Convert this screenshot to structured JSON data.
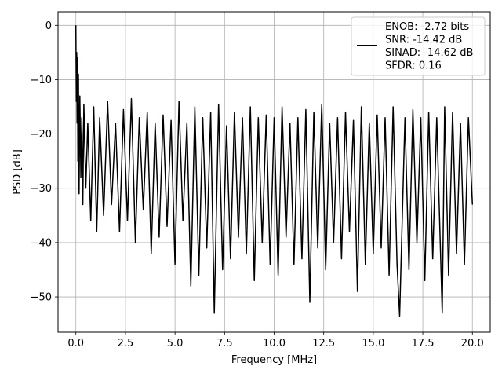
{
  "chart_data": {
    "type": "line",
    "xlabel": "Frequency [MHz]",
    "ylabel": "PSD [dB]",
    "xlim": [
      -0.9,
      20.9
    ],
    "ylim": [
      -56.5,
      2.5
    ],
    "xticks": [
      0.0,
      2.5,
      5.0,
      7.5,
      10.0,
      12.5,
      15.0,
      17.5,
      20.0
    ],
    "xtick_labels": [
      "0.0",
      "2.5",
      "5.0",
      "7.5",
      "10.0",
      "12.5",
      "15.0",
      "17.5",
      "20.0"
    ],
    "yticks": [
      0,
      -10,
      -20,
      -30,
      -40,
      -50
    ],
    "ytick_labels": [
      "0",
      "−10",
      "−20",
      "−30",
      "−40",
      "−50"
    ],
    "grid": true,
    "legend_placement": "upper-right",
    "legend_lines": [
      "ENOB: -2.72 bits",
      "SNR: -14.42 dB",
      "SINAD: -14.62 dB",
      "SFDR: 0.16"
    ],
    "line_color": "#000000",
    "series": [
      {
        "x": [
          0.0,
          0.02,
          0.04,
          0.06,
          0.08,
          0.1,
          0.13,
          0.16,
          0.2,
          0.25,
          0.3,
          0.35,
          0.4,
          0.5,
          0.6,
          0.75,
          0.9,
          1.05,
          1.2,
          1.4,
          1.6,
          1.8,
          2.0,
          2.2,
          2.4,
          2.6,
          2.8,
          3.0,
          3.2,
          3.4,
          3.6,
          3.8,
          4.0,
          4.2,
          4.4,
          4.6,
          4.8,
          5.0,
          5.2,
          5.4,
          5.6,
          5.8,
          6.0,
          6.2,
          6.4,
          6.6,
          6.8,
          6.98,
          7.2,
          7.4,
          7.6,
          7.8,
          8.0,
          8.2,
          8.4,
          8.6,
          8.8,
          9.0,
          9.2,
          9.4,
          9.6,
          9.8,
          10.0,
          10.2,
          10.4,
          10.6,
          10.8,
          11.0,
          11.2,
          11.4,
          11.6,
          11.8,
          12.0,
          12.2,
          12.4,
          12.6,
          12.8,
          13.0,
          13.2,
          13.4,
          13.6,
          13.8,
          14.0,
          14.2,
          14.4,
          14.6,
          14.8,
          15.0,
          15.2,
          15.4,
          15.6,
          15.8,
          16.0,
          16.2,
          16.33,
          16.6,
          16.8,
          17.0,
          17.2,
          17.4,
          17.6,
          17.8,
          18.0,
          18.2,
          18.48,
          18.6,
          18.8,
          19.0,
          19.2,
          19.4,
          19.6,
          19.8,
          20.0
        ],
        "y": [
          0.0,
          -14.0,
          -5.0,
          -18.0,
          -6.0,
          -25.0,
          -9.0,
          -31.0,
          -13.0,
          -28.0,
          -17.0,
          -33.0,
          -14.5,
          -30.0,
          -18.0,
          -36.0,
          -15.0,
          -38.0,
          -17.0,
          -35.0,
          -14.0,
          -33.0,
          -18.0,
          -38.0,
          -15.5,
          -36.0,
          -13.5,
          -40.0,
          -17.0,
          -34.0,
          -16.0,
          -42.0,
          -18.0,
          -39.0,
          -16.5,
          -37.0,
          -17.5,
          -44.0,
          -14.0,
          -36.0,
          -18.0,
          -48.0,
          -15.0,
          -46.0,
          -17.0,
          -41.0,
          -16.0,
          -53.0,
          -14.5,
          -45.0,
          -18.5,
          -43.0,
          -16.0,
          -39.0,
          -17.0,
          -42.0,
          -15.0,
          -47.0,
          -17.0,
          -40.0,
          -16.5,
          -44.0,
          -17.0,
          -46.0,
          -15.0,
          -39.0,
          -18.0,
          -44.0,
          -17.0,
          -43.0,
          -15.5,
          -51.0,
          -16.0,
          -41.0,
          -14.5,
          -45.0,
          -18.0,
          -40.0,
          -17.0,
          -43.0,
          -16.0,
          -38.0,
          -17.5,
          -49.0,
          -15.0,
          -44.0,
          -18.0,
          -42.0,
          -16.5,
          -41.0,
          -17.0,
          -46.0,
          -15.0,
          -44.0,
          -53.5,
          -17.0,
          -45.0,
          -15.5,
          -40.0,
          -17.0,
          -47.0,
          -16.0,
          -43.0,
          -17.0,
          -53.0,
          -15.0,
          -46.0,
          -16.0,
          -42.0,
          -18.0,
          -44.0,
          -17.0,
          -33.0
        ]
      }
    ]
  }
}
